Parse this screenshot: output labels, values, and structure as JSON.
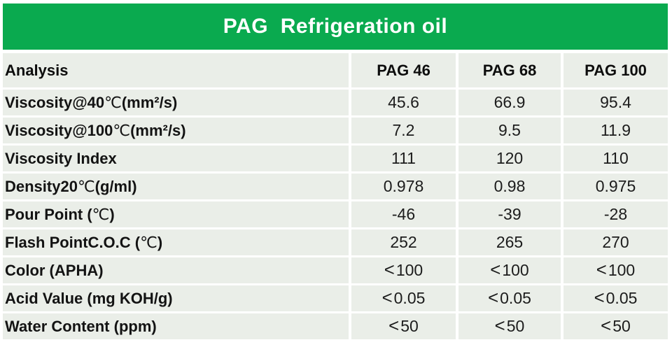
{
  "title": "PAG  Refrigeration oil",
  "colors": {
    "banner_green": "#0aaa4f",
    "cell_background": "#eaeee8",
    "gutter_white": "#ffffff",
    "title_text": "#ffffff",
    "body_text": "#131313"
  },
  "table": {
    "columns": [
      "Analysis",
      "PAG 46",
      "PAG 68",
      "PAG 100"
    ],
    "rows": [
      {
        "label": "Viscosity@40℃ (mm²/s)",
        "values": [
          "45.6",
          "66.9",
          "95.4"
        ]
      },
      {
        "label": "Viscosity@100℃ (mm²/s)",
        "values": [
          "7.2",
          "9.5",
          "11.9"
        ]
      },
      {
        "label": "Viscosity Index",
        "values": [
          "111",
          "120",
          "110"
        ]
      },
      {
        "label": "Density20℃ (g/ml)",
        "values": [
          "0.978",
          "0.98",
          "0.975"
        ]
      },
      {
        "label": "Pour Point (℃)",
        "values": [
          "-46",
          "-39",
          "-28"
        ]
      },
      {
        "label": "Flash PointC.O.C (℃)",
        "values": [
          "252",
          "265",
          "270"
        ]
      },
      {
        "label": "Color (APHA)",
        "values": [
          "<100",
          "<100",
          "<100"
        ]
      },
      {
        "label": "Acid Value (mg KOH/g)",
        "values": [
          "<0.05",
          "<0.05",
          "<0.05"
        ]
      },
      {
        "label": "Water Content (ppm)",
        "values": [
          "<50",
          "<50",
          "<50"
        ]
      }
    ]
  }
}
